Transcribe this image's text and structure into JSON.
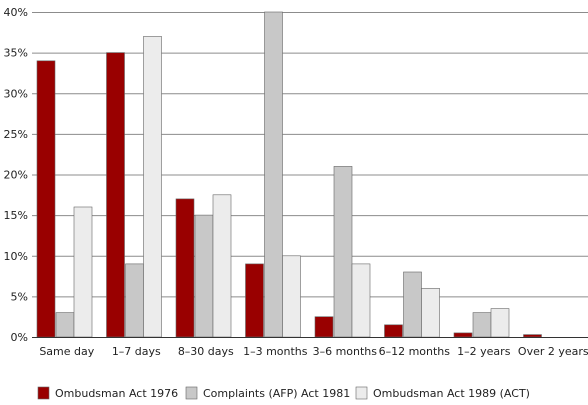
{
  "chart_data": {
    "type": "bar",
    "title": "",
    "xlabel": "",
    "ylabel": "",
    "ylim": [
      0,
      40
    ],
    "yticks": [
      0,
      5,
      10,
      15,
      20,
      25,
      30,
      35,
      40
    ],
    "ytick_suffix": "%",
    "grid": true,
    "legend_position": "bottom",
    "categories": [
      "Same day",
      "1–7 days",
      "8–30 days",
      "1–3 months",
      "3–6 months",
      "6–12 months",
      "1–2 years",
      "Over 2 years"
    ],
    "series": [
      {
        "name": "Ombudsman Act 1976",
        "color": "#990000",
        "values": [
          34,
          35,
          17,
          9,
          2.5,
          1.5,
          0.5,
          0.3
        ]
      },
      {
        "name": "Complaints (AFP) Act 1981",
        "color": "#c8c8c8",
        "values": [
          3,
          9,
          15,
          40,
          21,
          8,
          3,
          0
        ]
      },
      {
        "name": "Ombudsman Act 1989 (ACT)",
        "color": "#ececec",
        "values": [
          16,
          37,
          17.5,
          10,
          9,
          6,
          3.5,
          0
        ]
      }
    ]
  }
}
